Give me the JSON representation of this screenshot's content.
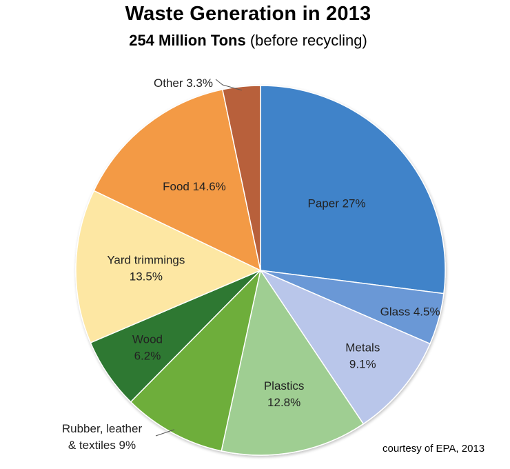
{
  "title": "Waste Generation in 2013",
  "subtitle_bold": "254 Million Tons",
  "subtitle_rest": "(before recycling)",
  "credit": "courtesy of EPA, 2013",
  "chart_data": {
    "type": "pie",
    "title": "Waste Generation in 2013",
    "subtitle": "254 Million Tons (before recycling)",
    "unit": "%",
    "slices": [
      {
        "name": "Paper",
        "value": 27,
        "label_lines": [
          "Paper 27%"
        ],
        "color": "#3f83c9"
      },
      {
        "name": "Glass",
        "value": 4.5,
        "label_lines": [
          "Glass 4.5%"
        ],
        "color": "#6b98d6"
      },
      {
        "name": "Metals",
        "value": 9.1,
        "label_lines": [
          "Metals",
          "9.1%"
        ],
        "color": "#b9c6ea"
      },
      {
        "name": "Plastics",
        "value": 12.8,
        "label_lines": [
          "Plastics",
          "12.8%"
        ],
        "color": "#9fce92"
      },
      {
        "name": "Rubber, leather & textiles",
        "value": 9,
        "label_lines": [
          "Rubber, leather",
          "& textiles 9%"
        ],
        "color": "#6eae3a"
      },
      {
        "name": "Wood",
        "value": 6.2,
        "label_lines": [
          "Wood",
          "6.2%"
        ],
        "color": "#2f7830"
      },
      {
        "name": "Yard trimmings",
        "value": 13.5,
        "label_lines": [
          "Yard trimmings",
          "13.5%"
        ],
        "color": "#fde7a3"
      },
      {
        "name": "Food",
        "value": 14.6,
        "label_lines": [
          "Food 14.6%"
        ],
        "color": "#f39a45"
      },
      {
        "name": "Other",
        "value": 3.3,
        "label_lines": [
          "Other 3.3%"
        ],
        "color": "#b8613b"
      }
    ]
  }
}
